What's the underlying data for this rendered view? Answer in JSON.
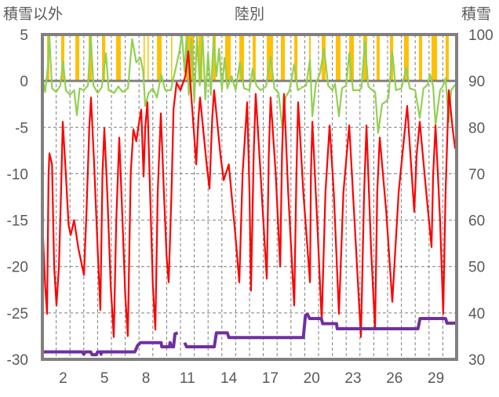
{
  "chart_data": {
    "type": "line",
    "title": "陸別",
    "left_axis_label": "積雪以外",
    "right_axis_label": "積雪",
    "xlim": [
      1,
      31
    ],
    "ylim_left": [
      -30,
      5
    ],
    "ylim_right": [
      30,
      100
    ],
    "left_ticks": [
      5,
      0,
      -5,
      -10,
      -15,
      -20,
      -25,
      -30
    ],
    "right_ticks": [
      100,
      90,
      80,
      70,
      60,
      50,
      40,
      30
    ],
    "x_ticks": [
      2,
      5,
      8,
      11,
      14,
      17,
      20,
      23,
      26,
      29
    ],
    "grid": true,
    "colors": {
      "temperature": "#ff0000",
      "green_series": "#92d050",
      "precipitation": "#ffc000",
      "snow_depth": "#7030a0",
      "axis": "#808080"
    },
    "temperature": [
      [
        1.0,
        -15
      ],
      [
        1.2,
        -22
      ],
      [
        1.34,
        -25.1
      ],
      [
        1.45,
        -10
      ],
      [
        1.51,
        -7.8
      ],
      [
        1.7,
        -9
      ],
      [
        1.85,
        -20
      ],
      [
        2.02,
        -24.2
      ],
      [
        2.2,
        -20
      ],
      [
        2.35,
        -12
      ],
      [
        2.48,
        -4.4
      ],
      [
        2.7,
        -10
      ],
      [
        2.9,
        -15.5
      ],
      [
        3.05,
        -16.6
      ],
      [
        3.3,
        -15
      ],
      [
        3.6,
        -18
      ],
      [
        4.01,
        -20.9
      ],
      [
        4.2,
        -14
      ],
      [
        4.4,
        -5
      ],
      [
        4.52,
        -1.8
      ],
      [
        4.75,
        -9
      ],
      [
        5.0,
        -18
      ],
      [
        5.2,
        -24.7
      ],
      [
        5.35,
        -10
      ],
      [
        5.49,
        -5.1
      ],
      [
        5.7,
        -12
      ],
      [
        5.95,
        -22
      ],
      [
        6.17,
        -27.6
      ],
      [
        6.35,
        -15
      ],
      [
        6.57,
        -6.1
      ],
      [
        6.8,
        -15
      ],
      [
        7.0,
        -23
      ],
      [
        7.19,
        -27.5
      ],
      [
        7.4,
        -10
      ],
      [
        7.59,
        -5.2
      ],
      [
        7.8,
        -6.5
      ],
      [
        8.0,
        -4.5
      ],
      [
        8.16,
        -3.1
      ],
      [
        8.33,
        -10.3
      ],
      [
        8.45,
        -5
      ],
      [
        8.61,
        -2.3
      ],
      [
        8.8,
        -12
      ],
      [
        9.0,
        -22
      ],
      [
        9.18,
        -26.8
      ],
      [
        9.35,
        -12
      ],
      [
        9.58,
        -3.5
      ],
      [
        9.8,
        -12
      ],
      [
        10.0,
        -19
      ],
      [
        10.15,
        -21.7
      ],
      [
        10.35,
        -12
      ],
      [
        10.5,
        -3
      ],
      [
        10.72,
        -0.2
      ],
      [
        11.0,
        -1
      ],
      [
        11.35,
        0.5
      ],
      [
        11.57,
        3.2
      ],
      [
        11.8,
        -2
      ],
      [
        12.0,
        -6
      ],
      [
        12.14,
        -9.0
      ],
      [
        12.3,
        -4
      ],
      [
        12.42,
        -1.8
      ],
      [
        12.7,
        -6
      ],
      [
        12.9,
        -9
      ],
      [
        13.1,
        -11.6
      ],
      [
        13.3,
        -4
      ],
      [
        13.44,
        -1.0
      ],
      [
        13.7,
        -5
      ],
      [
        13.9,
        -8
      ],
      [
        14.13,
        -10.7
      ],
      [
        14.5,
        -9
      ],
      [
        14.98,
        -16.6
      ],
      [
        15.26,
        -21.7
      ],
      [
        15.5,
        -10
      ],
      [
        15.83,
        -2.3
      ],
      [
        16.0,
        -12
      ],
      [
        16.11,
        -22.6
      ],
      [
        16.3,
        -8
      ],
      [
        16.45,
        -1.4
      ],
      [
        16.8,
        -10
      ],
      [
        17.25,
        -21.3
      ],
      [
        17.4,
        -8
      ],
      [
        17.53,
        -1.8
      ],
      [
        17.9,
        -10
      ],
      [
        18.22,
        -20.0
      ],
      [
        18.35,
        -8
      ],
      [
        18.5,
        -1.4
      ],
      [
        18.8,
        -12
      ],
      [
        19.24,
        -24.2
      ],
      [
        19.4,
        -10
      ],
      [
        19.52,
        -2.3
      ],
      [
        19.9,
        -12
      ],
      [
        20.38,
        -21.7
      ],
      [
        20.45,
        -10
      ],
      [
        20.55,
        -4.4
      ],
      [
        20.9,
        -15
      ],
      [
        21.23,
        -25.9
      ],
      [
        21.5,
        -12
      ],
      [
        21.8,
        -4.8
      ],
      [
        22.1,
        -12
      ],
      [
        22.48,
        -25.1
      ],
      [
        22.8,
        -12
      ],
      [
        23.22,
        -4.8
      ],
      [
        23.6,
        -15
      ],
      [
        24.07,
        -27.6
      ],
      [
        24.3,
        -12
      ],
      [
        24.47,
        -4.8
      ],
      [
        24.8,
        -18
      ],
      [
        25.09,
        -26.8
      ],
      [
        25.25,
        -12
      ],
      [
        25.43,
        -6.1
      ],
      [
        25.9,
        -14
      ],
      [
        26.34,
        -23.8
      ],
      [
        26.8,
        -12
      ],
      [
        27.42,
        -2.7
      ],
      [
        27.7,
        -9
      ],
      [
        27.93,
        -14.1
      ],
      [
        28.1,
        -8
      ],
      [
        28.33,
        -4.4
      ],
      [
        28.8,
        -12
      ],
      [
        29.18,
        -17.9
      ],
      [
        29.3,
        -10
      ],
      [
        29.47,
        -4.8
      ],
      [
        29.8,
        -15
      ],
      [
        30.03,
        -25.1
      ],
      [
        30.2,
        -12
      ],
      [
        30.43,
        -1.0
      ],
      [
        30.7,
        -5
      ],
      [
        30.89,
        -7.3
      ]
    ],
    "green_series": [
      [
        1.0,
        0.5
      ],
      [
        1.2,
        -1.2
      ],
      [
        1.4,
        1.5
      ],
      [
        1.5,
        5
      ],
      [
        1.7,
        -0.8
      ],
      [
        2.0,
        -1.2
      ],
      [
        2.3,
        -0.5
      ],
      [
        2.5,
        2.1
      ],
      [
        2.7,
        -1.0
      ],
      [
        3.0,
        -1.5
      ],
      [
        3.3,
        -1.0
      ],
      [
        3.5,
        -3.7
      ],
      [
        3.7,
        -0.8
      ],
      [
        4.0,
        -1.0
      ],
      [
        4.3,
        -0.5
      ],
      [
        4.5,
        5
      ],
      [
        4.7,
        -0.5
      ],
      [
        5.0,
        -1.3
      ],
      [
        5.3,
        -0.7
      ],
      [
        5.6,
        3
      ],
      [
        5.8,
        -1.0
      ],
      [
        6.2,
        -1.3
      ],
      [
        6.5,
        -0.6
      ],
      [
        6.8,
        -1.2
      ],
      [
        7.2,
        -0.8
      ],
      [
        7.5,
        4.5
      ],
      [
        7.8,
        2.0
      ],
      [
        8.1,
        2.5
      ],
      [
        8.3,
        1.0
      ],
      [
        8.45,
        -2.7
      ],
      [
        8.7,
        -1.3
      ],
      [
        9.0,
        -0.8
      ],
      [
        9.3,
        -1.8
      ],
      [
        9.6,
        0.7
      ],
      [
        9.9,
        -1.0
      ],
      [
        10.3,
        -1.0
      ],
      [
        10.6,
        1.0
      ],
      [
        10.9,
        3
      ],
      [
        11.1,
        5
      ],
      [
        11.3,
        1
      ],
      [
        11.45,
        5
      ],
      [
        11.6,
        -1.5
      ],
      [
        11.8,
        4.5
      ],
      [
        12.0,
        -2.3
      ],
      [
        12.2,
        4.8
      ],
      [
        12.4,
        -0.5
      ],
      [
        12.6,
        5
      ],
      [
        12.8,
        -2.0
      ],
      [
        13.0,
        3
      ],
      [
        13.2,
        -1.5
      ],
      [
        13.4,
        4.6
      ],
      [
        13.6,
        0.5
      ],
      [
        13.8,
        3.5
      ],
      [
        14.0,
        -1
      ],
      [
        14.2,
        2.5
      ],
      [
        14.4,
        -0.8
      ],
      [
        14.7,
        0.5
      ],
      [
        15.0,
        -1
      ],
      [
        15.3,
        2
      ],
      [
        15.6,
        -0.8
      ],
      [
        16.0,
        -1.0
      ],
      [
        16.23,
        1.3
      ],
      [
        16.5,
        -0.5
      ],
      [
        16.8,
        -1.0
      ],
      [
        17.2,
        -0.6
      ],
      [
        17.53,
        2.6
      ],
      [
        17.8,
        -0.8
      ],
      [
        18.1,
        -1.3
      ],
      [
        18.39,
        -5.2
      ],
      [
        18.6,
        -1.8
      ],
      [
        18.9,
        -1.0
      ],
      [
        19.24,
        1.8
      ],
      [
        19.5,
        -1.0
      ],
      [
        19.8,
        -0.7
      ],
      [
        20.1,
        -0.5
      ],
      [
        20.38,
        2.3
      ],
      [
        20.55,
        -3.8
      ],
      [
        20.8,
        -0.3
      ],
      [
        21.1,
        0.8
      ],
      [
        21.4,
        3.5
      ],
      [
        21.7,
        -0.5
      ],
      [
        22.0,
        -1.0
      ],
      [
        22.2,
        -0.3
      ],
      [
        22.48,
        -3.8
      ],
      [
        22.7,
        -0.8
      ],
      [
        23.0,
        -0.5
      ],
      [
        23.22,
        3
      ],
      [
        23.5,
        -1
      ],
      [
        23.9,
        -1.0
      ],
      [
        24.1,
        -0.8
      ],
      [
        24.35,
        4.3
      ],
      [
        24.6,
        -0.6
      ],
      [
        24.9,
        -1.0
      ],
      [
        25.1,
        -1.2
      ],
      [
        25.32,
        -5.6
      ],
      [
        25.6,
        -2.5
      ],
      [
        25.9,
        -2.2
      ],
      [
        26.06,
        -1.8
      ],
      [
        26.34,
        3.2
      ],
      [
        26.6,
        -1.0
      ],
      [
        27.0,
        -0.8
      ],
      [
        27.36,
        1.4
      ],
      [
        27.6,
        -0.8
      ],
      [
        28.0,
        -1.0
      ],
      [
        28.33,
        -4
      ],
      [
        28.6,
        -0.8
      ],
      [
        28.9,
        -0.4
      ],
      [
        29.07,
        0.7
      ],
      [
        29.3,
        -0.6
      ],
      [
        29.47,
        -4.8
      ],
      [
        29.8,
        -1.0
      ],
      [
        30.0,
        -0.6
      ],
      [
        30.2,
        0.3
      ],
      [
        30.43,
        -4.4
      ],
      [
        30.6,
        -1.0
      ],
      [
        30.89,
        -0.4
      ]
    ],
    "precipitation_bars": [
      [
        1.34,
        1.51,
        5
      ],
      [
        2.36,
        2.59,
        5
      ],
      [
        3.39,
        3.67,
        5
      ],
      [
        4.35,
        4.58,
        5
      ],
      [
        5.32,
        5.55,
        5
      ],
      [
        6.34,
        6.68,
        5
      ],
      [
        8.33,
        8.39,
        5
      ],
      [
        8.61,
        8.67,
        5
      ],
      [
        9.3,
        9.64,
        5
      ],
      [
        10.32,
        10.38,
        5
      ],
      [
        11.4,
        11.97,
        5
      ],
      [
        12.31,
        12.59,
        5
      ],
      [
        13.33,
        13.56,
        5
      ],
      [
        14.24,
        14.64,
        5
      ],
      [
        15.26,
        15.6,
        5
      ],
      [
        16.23,
        16.45,
        5
      ],
      [
        17.25,
        17.7,
        5
      ],
      [
        18.27,
        18.56,
        5
      ],
      [
        19.24,
        19.47,
        5
      ],
      [
        20.32,
        20.43,
        5
      ],
      [
        21.23,
        21.51,
        5
      ],
      [
        22.25,
        22.59,
        5
      ],
      [
        23.22,
        23.56,
        5
      ],
      [
        24.24,
        24.52,
        5
      ],
      [
        25.2,
        25.43,
        5
      ],
      [
        26.17,
        26.4,
        5
      ],
      [
        27.19,
        27.53,
        5
      ],
      [
        28.27,
        28.5,
        5
      ],
      [
        29.18,
        29.58,
        5
      ],
      [
        30.2,
        30.43,
        5
      ]
    ],
    "snow_depth_segments": [
      [
        [
          1,
          31.6
        ],
        [
          3.9,
          31.6
        ],
        [
          4.0,
          31.1
        ],
        [
          4.1,
          31.6
        ],
        [
          4.5,
          31.6
        ],
        [
          4.6,
          31.0
        ],
        [
          4.9,
          31.0
        ],
        [
          5.0,
          31.6
        ],
        [
          5.2,
          31.6
        ],
        [
          5.25,
          31.1
        ],
        [
          5.3,
          31.6
        ],
        [
          7.7,
          31.6
        ],
        [
          7.9,
          33.0
        ],
        [
          8.1,
          33.6
        ],
        [
          9.6,
          33.6
        ],
        [
          9.65,
          32.7
        ],
        [
          10.2,
          32.7
        ],
        [
          10.25,
          33.6
        ],
        [
          10.35,
          32.7
        ],
        [
          10.5,
          32.7
        ],
        [
          10.6,
          35.5
        ],
        [
          10.8,
          35.7
        ]
      ],
      [
        [
          11.3,
          33.6
        ],
        [
          11.45,
          32.7
        ],
        [
          13.45,
          32.7
        ],
        [
          13.6,
          35.7
        ],
        [
          14.4,
          35.7
        ],
        [
          14.5,
          34.7
        ],
        [
          19.9,
          34.7
        ],
        [
          20.05,
          39.5
        ],
        [
          20.2,
          39.7
        ],
        [
          20.35,
          38.8
        ],
        [
          21.2,
          38.8
        ],
        [
          21.3,
          37.7
        ],
        [
          22.3,
          37.7
        ],
        [
          22.35,
          36.6
        ],
        [
          28.2,
          36.6
        ],
        [
          28.35,
          38.8
        ],
        [
          30.2,
          38.8
        ],
        [
          30.3,
          37.8
        ],
        [
          30.89,
          37.8
        ]
      ]
    ]
  }
}
